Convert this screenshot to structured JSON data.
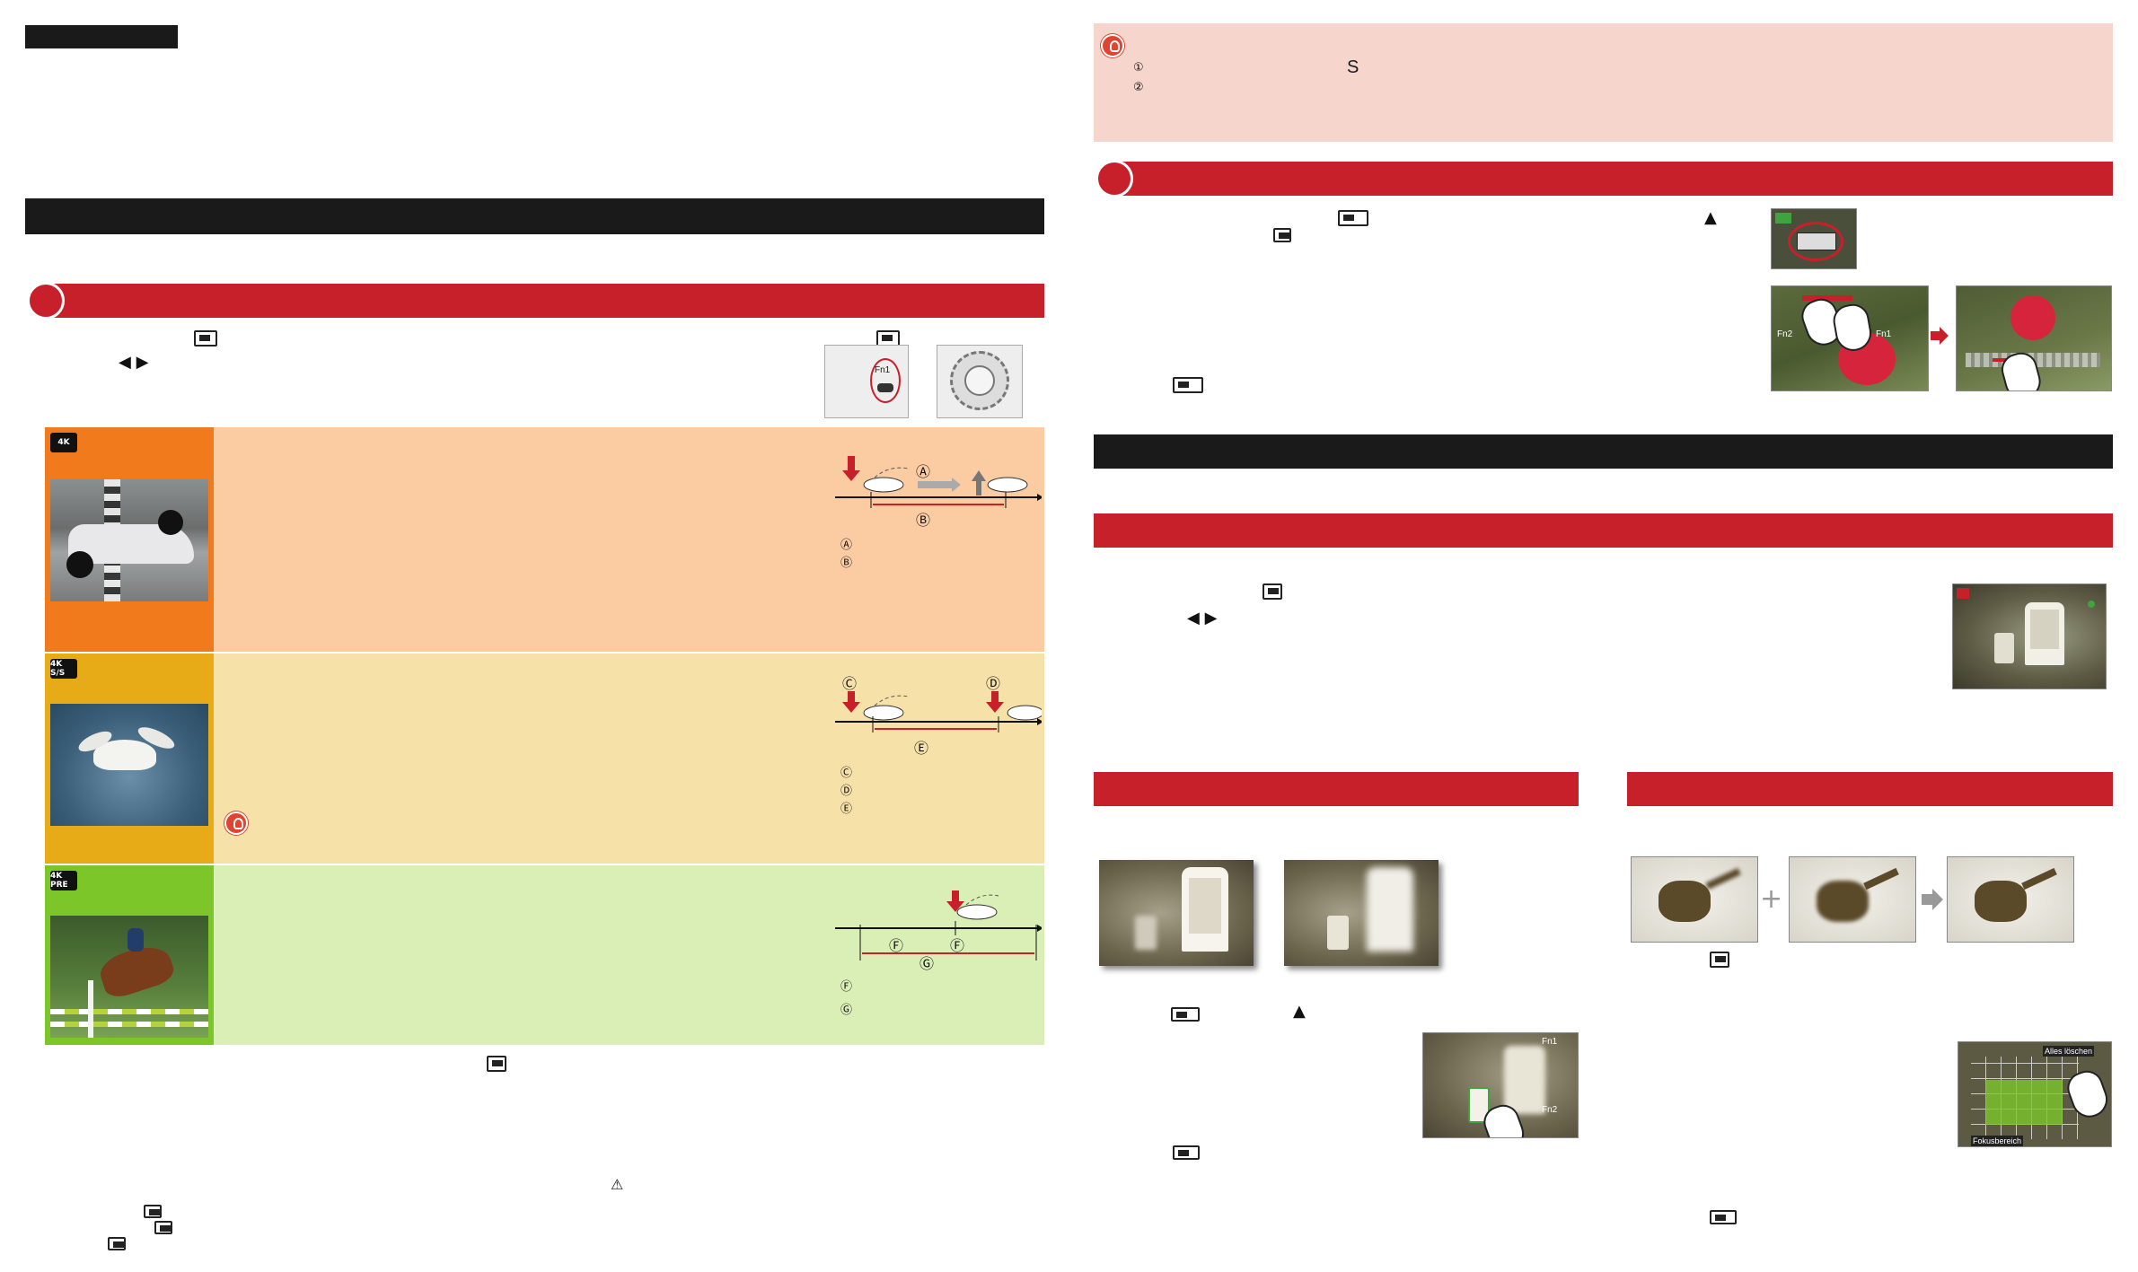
{
  "left": {
    "top_tab_label": "",
    "section_bar_label": "",
    "step1_title": "",
    "step1_icon": "4k-burst-icon",
    "arrows_glyph": "◀ ▶",
    "mode_rows": [
      {
        "icon_label": "4K",
        "color": "#f07a1c",
        "bg": "#fbcba1",
        "legend": [
          "Ⓐ",
          "Ⓑ"
        ],
        "timeline_letters": [
          "Ⓐ",
          "Ⓑ"
        ]
      },
      {
        "icon_label": "4K S/S",
        "color": "#e7ab17",
        "bg": "#f6e2a8",
        "legend": [
          "Ⓒ",
          "Ⓓ",
          "Ⓔ"
        ],
        "timeline_letters": [
          "Ⓒ",
          "Ⓓ",
          "Ⓔ"
        ]
      },
      {
        "icon_label": "4K PRE",
        "color": "#7cc62a",
        "bg": "#d9efb6",
        "legend": [
          "Ⓕ",
          "Ⓖ"
        ],
        "timeline_letters": [
          "Ⓕ",
          "Ⓕ",
          "Ⓖ"
        ]
      }
    ],
    "camera_label": "Fn1",
    "warning_glyph": "⚠"
  },
  "right": {
    "tip_lines": [
      "①",
      "②"
    ],
    "tip_s": "S",
    "up_arrow": "▲",
    "arrows_glyph": "◀ ▶",
    "screen_fn1": "Fn1",
    "screen_fn2": "Fn2",
    "grid_top_label": "Alles löschen",
    "grid_bottom_label": "Fokusbereich",
    "colors": {
      "red": "#c8202b",
      "black": "#1a1a1a",
      "tip_bg": "#f5d5cc"
    }
  }
}
